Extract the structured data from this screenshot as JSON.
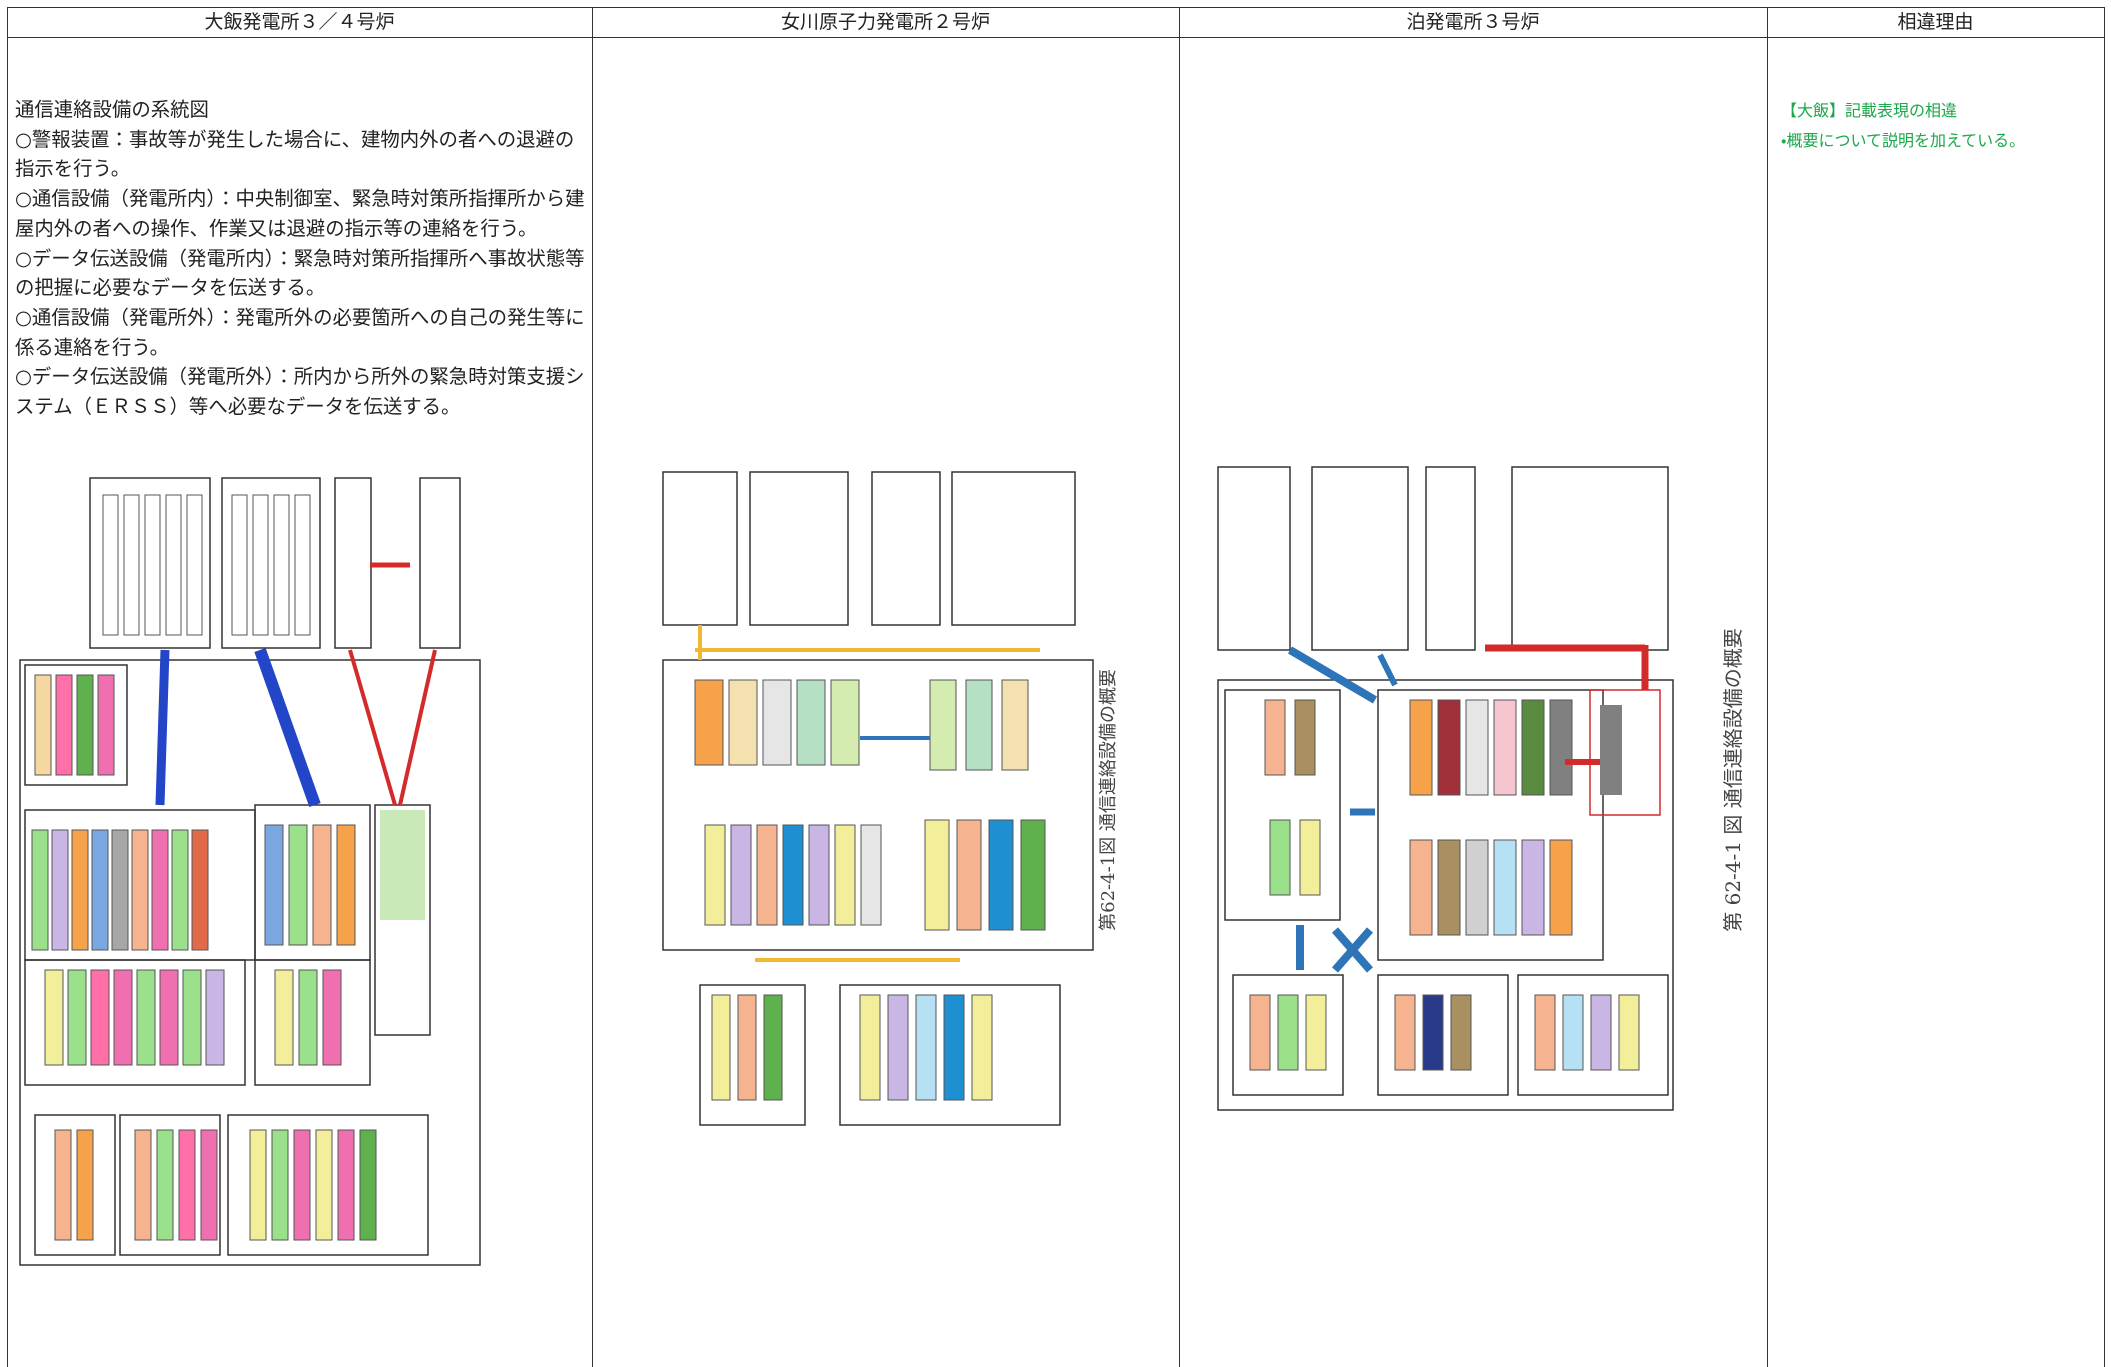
{
  "headers": [
    "大飯発電所３／４号炉",
    "女川原子力発電所２号炉",
    "泊発電所３号炉",
    "相違理由"
  ],
  "ohi": {
    "title": "通信連絡設備の系統図",
    "paragraphs": [
      "○警報装置：事故等が発生した場合に、建物内外の者への退避の指示を行う。",
      "○通信設備（発電所内）：中央制御室、緊急時対策所指揮所から建屋内外の者への操作、作業又は退避の指示等の連絡を行う。",
      "○データ伝送設備（発電所内）：緊急時対策所指揮所へ事故状態等の把握に必要なデータを伝送する。",
      "○通信設備（発電所外）：発電所外の必要箇所への自己の発生等に係る連絡を行う。",
      "○データ伝送設備（発電所外）：所内から所外の緊急時対策支援システム（ＥＲＳＳ）等へ必要なデータを伝送する。"
    ]
  },
  "onagawa": {
    "caption": "第62-4-1図 通信連絡設備の概要"
  },
  "tomari": {
    "caption": "第 62-4-1 図 通信連絡設備の概要"
  },
  "notes": [
    "【大飯】記載表現の相違",
    "・概要について説明を加えている。"
  ]
}
